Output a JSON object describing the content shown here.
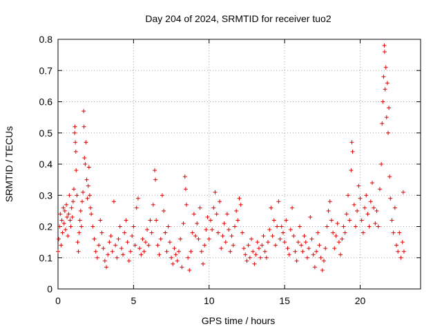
{
  "chart_data": {
    "type": "scatter",
    "title": "Day 204 of 2024, SRMTID for receiver tuo2",
    "xlabel": "GPS time / hours",
    "ylabel": "SRMTID / TECUs",
    "xlim": [
      0,
      24
    ],
    "ylim": [
      0,
      0.8
    ],
    "xticks": [
      0,
      5,
      10,
      15,
      20
    ],
    "xtick_labels": [
      "0",
      "5",
      "10",
      "15",
      "20"
    ],
    "yticks": [
      0,
      0.1,
      0.2,
      0.3,
      0.4,
      0.5,
      0.6,
      0.7,
      0.8
    ],
    "ytick_labels": [
      "0",
      "0.1",
      "0.2",
      "0.3",
      "0.4",
      "0.5",
      "0.6",
      "0.7",
      "0.8"
    ],
    "grid": true,
    "marker": "+",
    "color": "#e00000",
    "series": [
      {
        "name": "SRMTID",
        "points": [
          [
            0.0,
            0.12
          ],
          [
            0.05,
            0.16
          ],
          [
            0.1,
            0.2
          ],
          [
            0.15,
            0.24
          ],
          [
            0.2,
            0.14
          ],
          [
            0.25,
            0.22
          ],
          [
            0.3,
            0.18
          ],
          [
            0.35,
            0.26
          ],
          [
            0.4,
            0.21
          ],
          [
            0.45,
            0.25
          ],
          [
            0.5,
            0.19
          ],
          [
            0.55,
            0.27
          ],
          [
            0.6,
            0.23
          ],
          [
            0.65,
            0.17
          ],
          [
            0.7,
            0.24
          ],
          [
            0.75,
            0.3
          ],
          [
            0.8,
            0.22
          ],
          [
            0.85,
            0.2
          ],
          [
            0.9,
            0.26
          ],
          [
            0.95,
            0.23
          ],
          [
            1.0,
            0.28
          ],
          [
            1.05,
            0.32
          ],
          [
            1.1,
            0.5
          ],
          [
            1.12,
            0.52
          ],
          [
            1.15,
            0.47
          ],
          [
            1.18,
            0.44
          ],
          [
            1.2,
            0.38
          ],
          [
            1.25,
            0.3
          ],
          [
            1.3,
            0.15
          ],
          [
            1.35,
            0.12
          ],
          [
            1.4,
            0.18
          ],
          [
            1.45,
            0.22
          ],
          [
            1.5,
            0.25
          ],
          [
            1.55,
            0.2
          ],
          [
            1.6,
            0.28
          ],
          [
            1.65,
            0.31
          ],
          [
            1.7,
            0.57
          ],
          [
            1.72,
            0.52
          ],
          [
            1.75,
            0.42
          ],
          [
            1.8,
            0.4
          ],
          [
            1.85,
            0.47
          ],
          [
            1.9,
            0.35
          ],
          [
            1.95,
            0.29
          ],
          [
            2.0,
            0.33
          ],
          [
            2.05,
            0.39
          ],
          [
            2.1,
            0.3
          ],
          [
            2.15,
            0.26
          ],
          [
            2.2,
            0.24
          ],
          [
            2.3,
            0.2
          ],
          [
            2.4,
            0.16
          ],
          [
            2.5,
            0.12
          ],
          [
            2.6,
            0.1
          ],
          [
            2.7,
            0.14
          ],
          [
            2.8,
            0.22
          ],
          [
            2.9,
            0.18
          ],
          [
            3.0,
            0.13
          ],
          [
            3.1,
            0.09
          ],
          [
            3.2,
            0.07
          ],
          [
            3.3,
            0.11
          ],
          [
            3.4,
            0.15
          ],
          [
            3.5,
            0.17
          ],
          [
            3.6,
            0.12
          ],
          [
            3.7,
            0.28
          ],
          [
            3.8,
            0.14
          ],
          [
            3.9,
            0.1
          ],
          [
            4.0,
            0.16
          ],
          [
            4.1,
            0.2
          ],
          [
            4.2,
            0.13
          ],
          [
            4.3,
            0.11
          ],
          [
            4.4,
            0.18
          ],
          [
            4.5,
            0.22
          ],
          [
            4.6,
            0.15
          ],
          [
            4.7,
            0.09
          ],
          [
            4.8,
            0.12
          ],
          [
            4.9,
            0.17
          ],
          [
            5.0,
            0.2
          ],
          [
            5.1,
            0.14
          ],
          [
            5.2,
            0.26
          ],
          [
            5.3,
            0.29
          ],
          [
            5.4,
            0.13
          ],
          [
            5.5,
            0.11
          ],
          [
            5.6,
            0.16
          ],
          [
            5.7,
            0.12
          ],
          [
            5.8,
            0.15
          ],
          [
            5.9,
            0.19
          ],
          [
            6.0,
            0.14
          ],
          [
            6.1,
            0.22
          ],
          [
            6.2,
            0.18
          ],
          [
            6.3,
            0.27
          ],
          [
            6.4,
            0.38
          ],
          [
            6.45,
            0.35
          ],
          [
            6.5,
            0.22
          ],
          [
            6.6,
            0.14
          ],
          [
            6.7,
            0.11
          ],
          [
            6.8,
            0.16
          ],
          [
            6.9,
            0.3
          ],
          [
            7.0,
            0.25
          ],
          [
            7.1,
            0.18
          ],
          [
            7.2,
            0.12
          ],
          [
            7.3,
            0.2
          ],
          [
            7.4,
            0.15
          ],
          [
            7.5,
            0.1
          ],
          [
            7.6,
            0.08
          ],
          [
            7.7,
            0.13
          ],
          [
            7.8,
            0.11
          ],
          [
            7.9,
            0.09
          ],
          [
            8.0,
            0.12
          ],
          [
            8.1,
            0.16
          ],
          [
            8.2,
            0.07
          ],
          [
            8.3,
            0.21
          ],
          [
            8.4,
            0.36
          ],
          [
            8.45,
            0.32
          ],
          [
            8.5,
            0.27
          ],
          [
            8.6,
            0.1
          ],
          [
            8.7,
            0.06
          ],
          [
            8.8,
            0.12
          ],
          [
            8.9,
            0.18
          ],
          [
            9.0,
            0.24
          ],
          [
            9.1,
            0.17
          ],
          [
            9.2,
            0.21
          ],
          [
            9.3,
            0.16
          ],
          [
            9.4,
            0.26
          ],
          [
            9.5,
            0.12
          ],
          [
            9.6,
            0.08
          ],
          [
            9.7,
            0.14
          ],
          [
            9.8,
            0.19
          ],
          [
            9.9,
            0.23
          ],
          [
            10.0,
            0.16
          ],
          [
            10.1,
            0.22
          ],
          [
            10.2,
            0.19
          ],
          [
            10.3,
            0.26
          ],
          [
            10.4,
            0.31
          ],
          [
            10.5,
            0.24
          ],
          [
            10.6,
            0.18
          ],
          [
            10.7,
            0.28
          ],
          [
            10.8,
            0.13
          ],
          [
            10.9,
            0.17
          ],
          [
            11.0,
            0.21
          ],
          [
            11.1,
            0.15
          ],
          [
            11.2,
            0.24
          ],
          [
            11.3,
            0.19
          ],
          [
            11.4,
            0.12
          ],
          [
            11.5,
            0.17
          ],
          [
            11.6,
            0.14
          ],
          [
            11.7,
            0.2
          ],
          [
            11.8,
            0.25
          ],
          [
            11.9,
            0.22
          ],
          [
            12.0,
            0.29
          ],
          [
            12.1,
            0.27
          ],
          [
            12.2,
            0.18
          ],
          [
            12.3,
            0.13
          ],
          [
            12.4,
            0.11
          ],
          [
            12.5,
            0.09
          ],
          [
            12.6,
            0.14
          ],
          [
            12.7,
            0.1
          ],
          [
            12.8,
            0.16
          ],
          [
            12.9,
            0.12
          ],
          [
            13.0,
            0.08
          ],
          [
            13.1,
            0.11
          ],
          [
            13.2,
            0.15
          ],
          [
            13.3,
            0.13
          ],
          [
            13.4,
            0.1
          ],
          [
            13.5,
            0.14
          ],
          [
            13.6,
            0.17
          ],
          [
            13.7,
            0.12
          ],
          [
            13.8,
            0.1
          ],
          [
            13.9,
            0.15
          ],
          [
            14.0,
            0.19
          ],
          [
            14.1,
            0.26
          ],
          [
            14.2,
            0.17
          ],
          [
            14.3,
            0.22
          ],
          [
            14.4,
            0.14
          ],
          [
            14.5,
            0.2
          ],
          [
            14.6,
            0.28
          ],
          [
            14.7,
            0.16
          ],
          [
            14.8,
            0.2
          ],
          [
            14.9,
            0.18
          ],
          [
            15.0,
            0.15
          ],
          [
            15.1,
            0.22
          ],
          [
            15.2,
            0.13
          ],
          [
            15.3,
            0.11
          ],
          [
            15.4,
            0.19
          ],
          [
            15.5,
            0.26
          ],
          [
            15.6,
            0.17
          ],
          [
            15.7,
            0.12
          ],
          [
            15.8,
            0.09
          ],
          [
            15.9,
            0.15
          ],
          [
            16.0,
            0.2
          ],
          [
            16.1,
            0.14
          ],
          [
            16.2,
            0.12
          ],
          [
            16.3,
            0.17
          ],
          [
            16.4,
            0.15
          ],
          [
            16.5,
            0.1
          ],
          [
            16.6,
            0.13
          ],
          [
            16.7,
            0.23
          ],
          [
            16.8,
            0.16
          ],
          [
            16.9,
            0.11
          ],
          [
            17.0,
            0.07
          ],
          [
            17.1,
            0.12
          ],
          [
            17.2,
            0.18
          ],
          [
            17.3,
            0.14
          ],
          [
            17.4,
            0.1
          ],
          [
            17.5,
            0.06
          ],
          [
            17.6,
            0.09
          ],
          [
            17.7,
            0.13
          ],
          [
            17.8,
            0.2
          ],
          [
            17.9,
            0.25
          ],
          [
            18.0,
            0.28
          ],
          [
            18.1,
            0.22
          ],
          [
            18.2,
            0.18
          ],
          [
            18.3,
            0.13
          ],
          [
            18.4,
            0.17
          ],
          [
            18.5,
            0.21
          ],
          [
            18.6,
            0.15
          ],
          [
            18.7,
            0.11
          ],
          [
            18.8,
            0.16
          ],
          [
            18.9,
            0.2
          ],
          [
            19.0,
            0.18
          ],
          [
            19.1,
            0.24
          ],
          [
            19.2,
            0.3
          ],
          [
            19.3,
            0.22
          ],
          [
            19.4,
            0.38
          ],
          [
            19.45,
            0.47
          ],
          [
            19.5,
            0.44
          ],
          [
            19.6,
            0.27
          ],
          [
            19.7,
            0.2
          ],
          [
            19.8,
            0.25
          ],
          [
            19.9,
            0.33
          ],
          [
            20.0,
            0.29
          ],
          [
            20.1,
            0.22
          ],
          [
            20.2,
            0.18
          ],
          [
            20.3,
            0.26
          ],
          [
            20.4,
            0.3
          ],
          [
            20.5,
            0.24
          ],
          [
            20.6,
            0.2
          ],
          [
            20.7,
            0.28
          ],
          [
            20.8,
            0.34
          ],
          [
            20.9,
            0.26
          ],
          [
            21.0,
            0.21
          ],
          [
            21.1,
            0.25
          ],
          [
            21.2,
            0.2
          ],
          [
            21.3,
            0.32
          ],
          [
            21.4,
            0.4
          ],
          [
            21.45,
            0.53
          ],
          [
            21.5,
            0.6
          ],
          [
            21.55,
            0.68
          ],
          [
            21.6,
            0.78
          ],
          [
            21.62,
            0.76
          ],
          [
            21.65,
            0.64
          ],
          [
            21.7,
            0.71
          ],
          [
            21.75,
            0.55
          ],
          [
            21.8,
            0.66
          ],
          [
            21.85,
            0.5
          ],
          [
            21.9,
            0.58
          ],
          [
            21.95,
            0.36
          ],
          [
            22.0,
            0.29
          ],
          [
            22.1,
            0.22
          ],
          [
            22.2,
            0.18
          ],
          [
            22.3,
            0.26
          ],
          [
            22.4,
            0.14
          ],
          [
            22.5,
            0.12
          ],
          [
            22.6,
            0.18
          ],
          [
            22.7,
            0.1
          ],
          [
            22.8,
            0.15
          ],
          [
            22.85,
            0.31
          ],
          [
            22.9,
            0.12
          ]
        ]
      }
    ]
  }
}
